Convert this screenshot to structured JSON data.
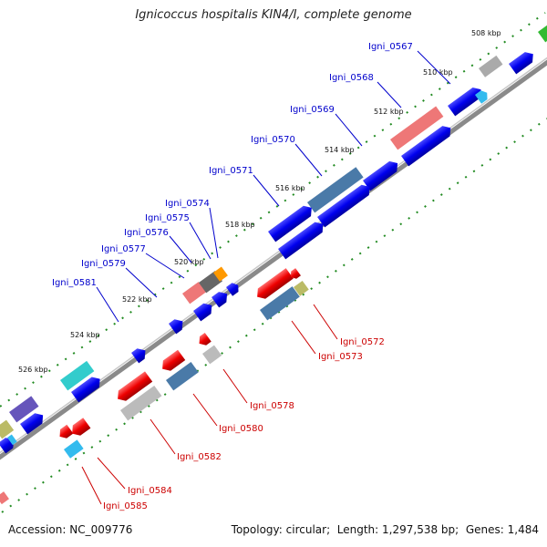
{
  "title": "Ignicoccus hospitalis KIN4/I, complete genome",
  "footer": {
    "accession_label": "Accession:",
    "accession_value": "NC_009776",
    "topology_label": "Topology:",
    "topology_value": "circular",
    "length_label": "Length:",
    "length_value": "1,297,538 bp",
    "genes_label": "Genes:",
    "genes_value": "1,484"
  },
  "kbp_ticks": [
    "508 kbp",
    "510 kbp",
    "512 kbp",
    "514 kbp",
    "516 kbp",
    "518 kbp",
    "520 kbp",
    "522 kbp",
    "524 kbp",
    "526 kbp"
  ],
  "forward_gene_labels": [
    "Igni_0567",
    "Igni_0568",
    "Igni_0569",
    "Igni_0570",
    "Igni_0571",
    "Igni_0574",
    "Igni_0575",
    "Igni_0576",
    "Igni_0577",
    "Igni_0579",
    "Igni_0581"
  ],
  "reverse_gene_labels": [
    "Igni_0572",
    "Igni_0573",
    "Igni_0578",
    "Igni_0580",
    "Igni_0582",
    "Igni_0584",
    "Igni_0585"
  ],
  "colors": {
    "forward_label": "#0000cc",
    "reverse_label": "#cc0000",
    "backbone": "#888888",
    "tick_mark": "#228b22",
    "cds_forward": "#0000ee",
    "cds_reverse": "#ee0000"
  }
}
